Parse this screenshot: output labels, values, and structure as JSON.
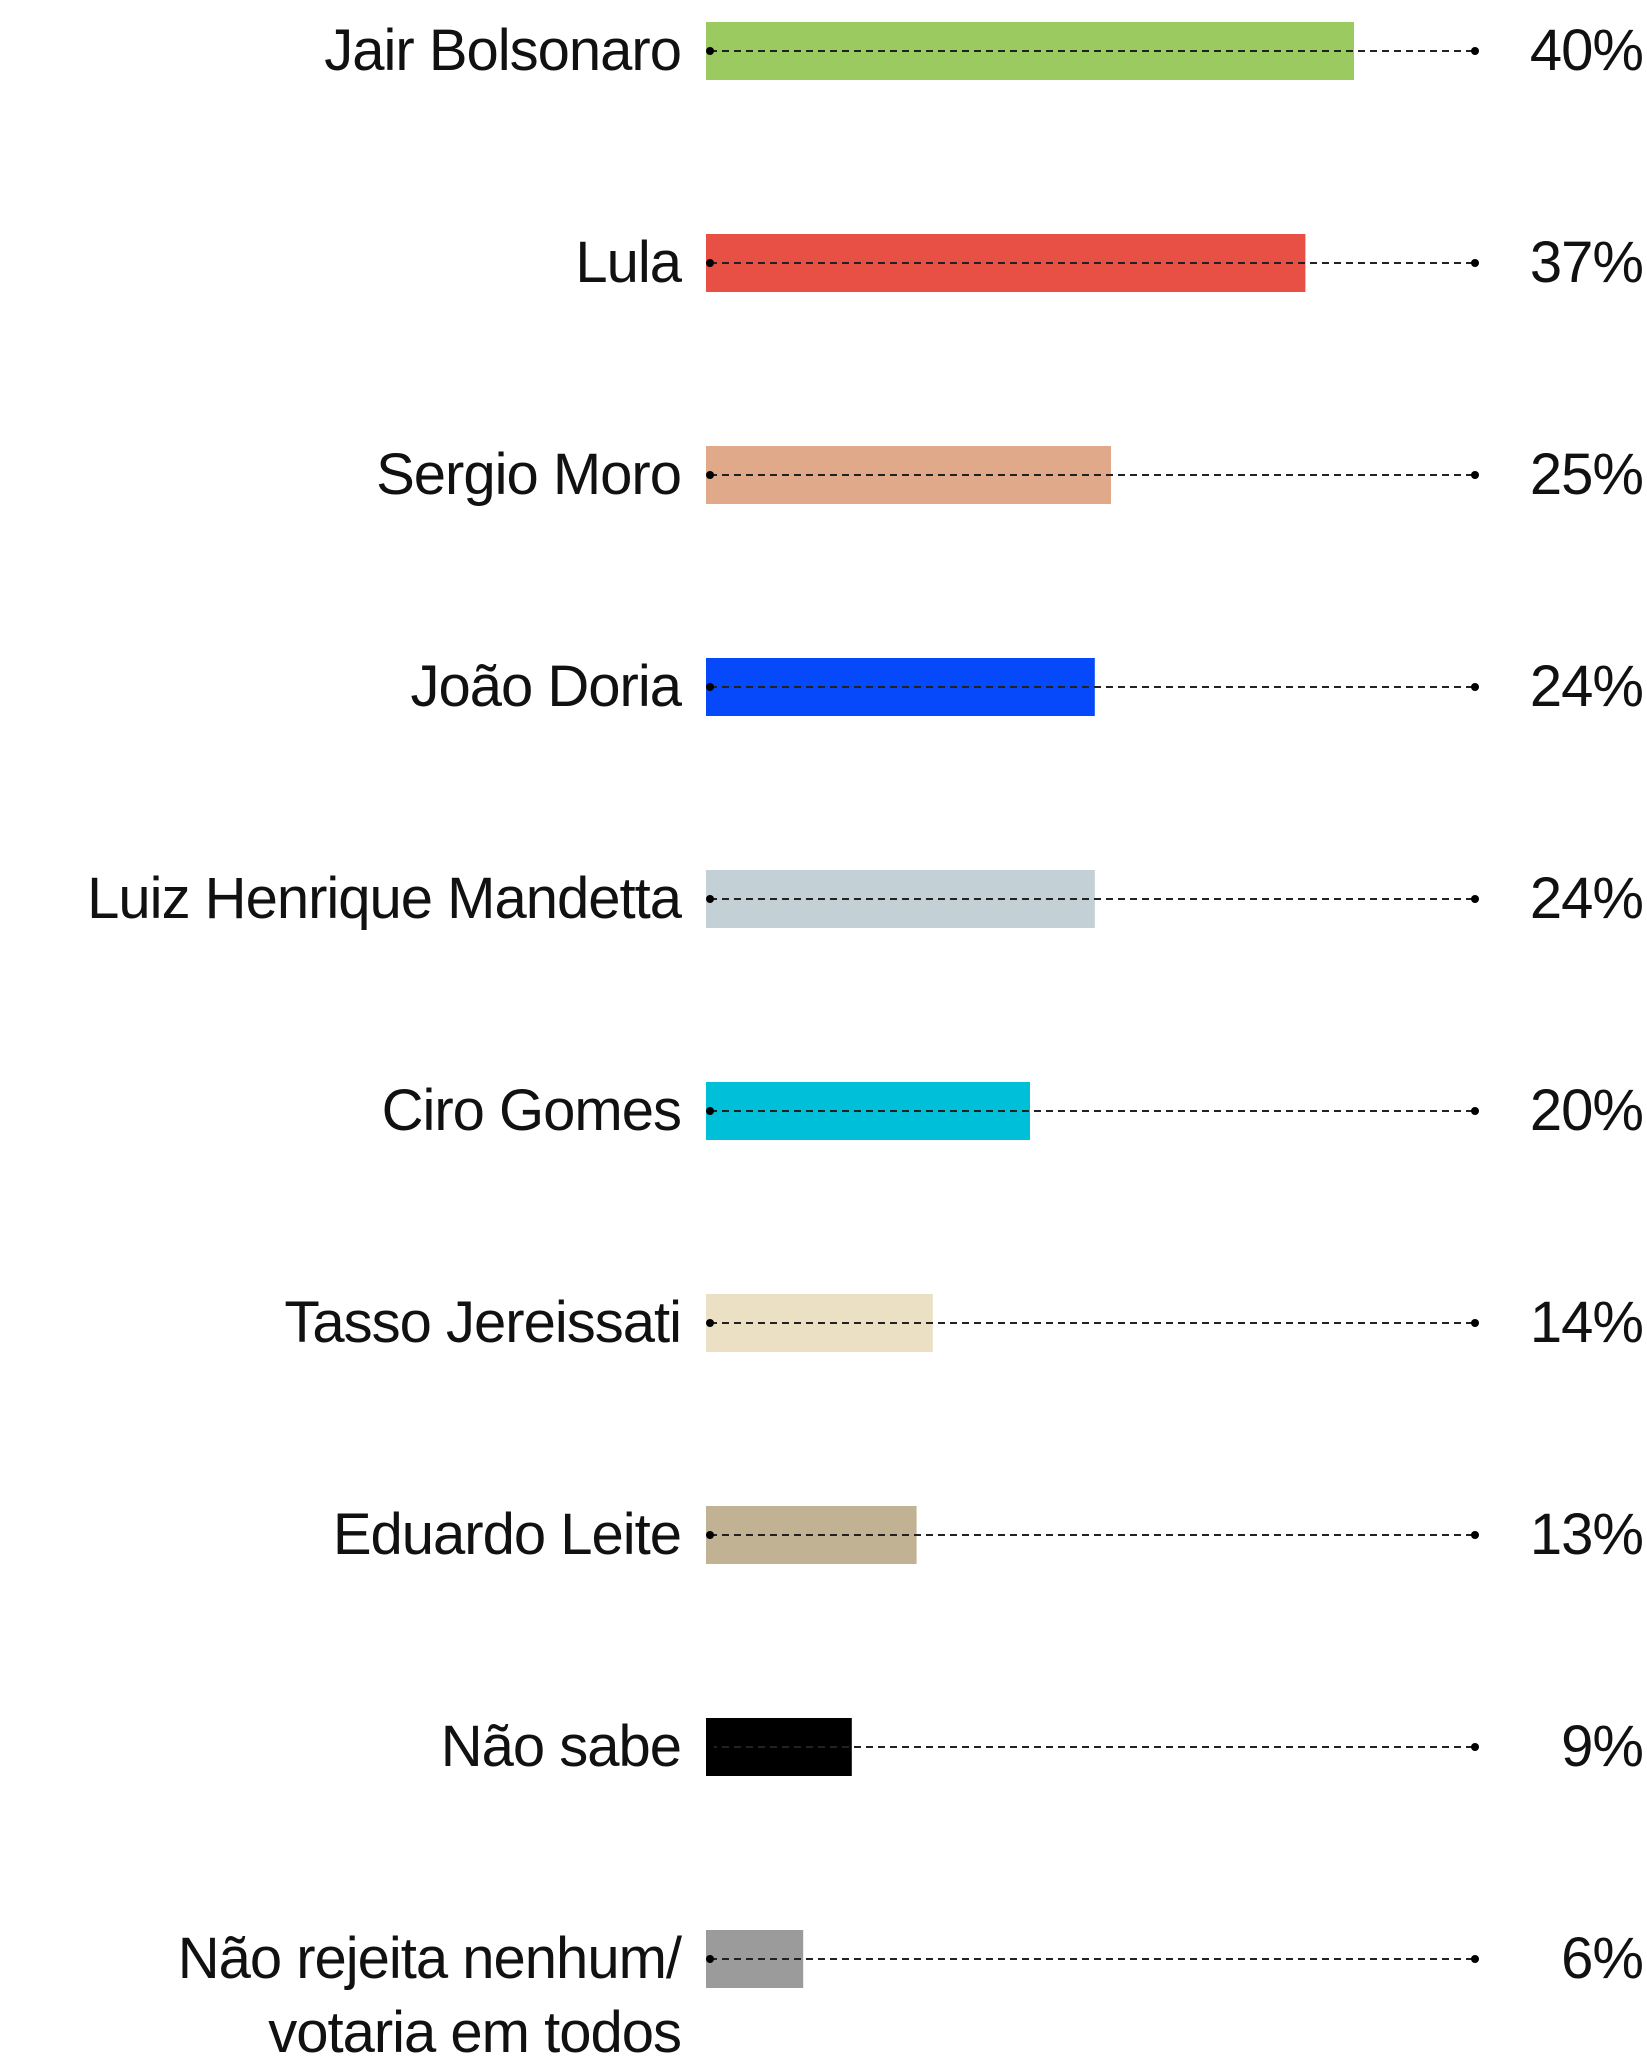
{
  "chart_data": {
    "type": "bar",
    "categories": [
      "Jair Bolsonaro",
      "Lula",
      "Sergio Moro",
      "João Doria",
      "Luiz Henrique Mandetta",
      "Ciro Gomes",
      "Tasso Jereissati",
      "Eduardo Leite",
      "Não sabe",
      "Não rejeita nenhum/ votaria em todos"
    ],
    "values": [
      40,
      37,
      25,
      24,
      24,
      20,
      14,
      13,
      9,
      6
    ],
    "value_labels": [
      "40%",
      "37%",
      "25%",
      "24%",
      "24%",
      "20%",
      "14%",
      "13%",
      "9%",
      "6%"
    ],
    "colors": [
      "#9aca60",
      "#e84f45",
      "#dfa98a",
      "#0549fb",
      "#c3d1d6",
      "#00bfd8",
      "#ebe0c4",
      "#c2b294",
      "#000000",
      "#9b9b9b"
    ]
  }
}
